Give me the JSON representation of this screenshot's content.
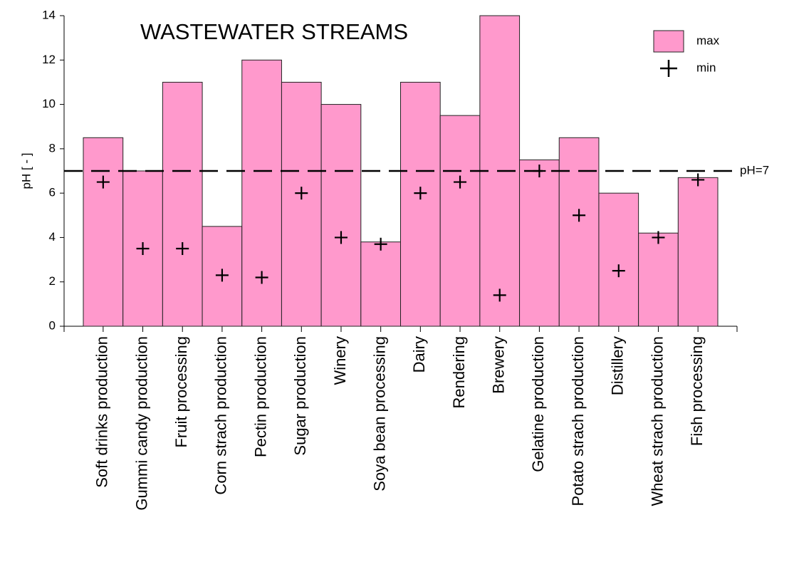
{
  "chart_data": {
    "type": "bar",
    "title": "WASTEWATER STREAMS",
    "y_label": "pH [ - ]",
    "categories": [
      "Soft drinks production",
      "Gummi candy production",
      "Fruit processing",
      "Corn strach production",
      "Pectin production",
      "Sugar production",
      "Winery",
      "Soya bean processing",
      "Dairy",
      "Rendering",
      "Brewery",
      "Gelatine production",
      "Potato strach production",
      "Distillery",
      "Wheat strach production",
      "Fish processing"
    ],
    "series": [
      {
        "name": "max",
        "style": "bar",
        "color": "#ff99cc",
        "values": [
          8.5,
          7,
          11,
          4.5,
          12,
          11,
          10,
          3.8,
          11,
          9.5,
          14,
          7.5,
          8.5,
          6,
          4.2,
          6.7
        ]
      },
      {
        "name": "min",
        "style": "plus",
        "color": "#000000",
        "values": [
          6.5,
          3.5,
          3.5,
          2.3,
          2.2,
          6,
          4,
          3.7,
          6,
          6.5,
          1.4,
          7,
          5,
          2.5,
          4,
          6.6
        ]
      }
    ],
    "reference_line": {
      "value": 7,
      "label": "pH=7"
    },
    "ylim": [
      0,
      14
    ],
    "yticks": [
      0,
      2,
      4,
      6,
      8,
      10,
      12,
      14
    ],
    "legend": "upper right"
  }
}
